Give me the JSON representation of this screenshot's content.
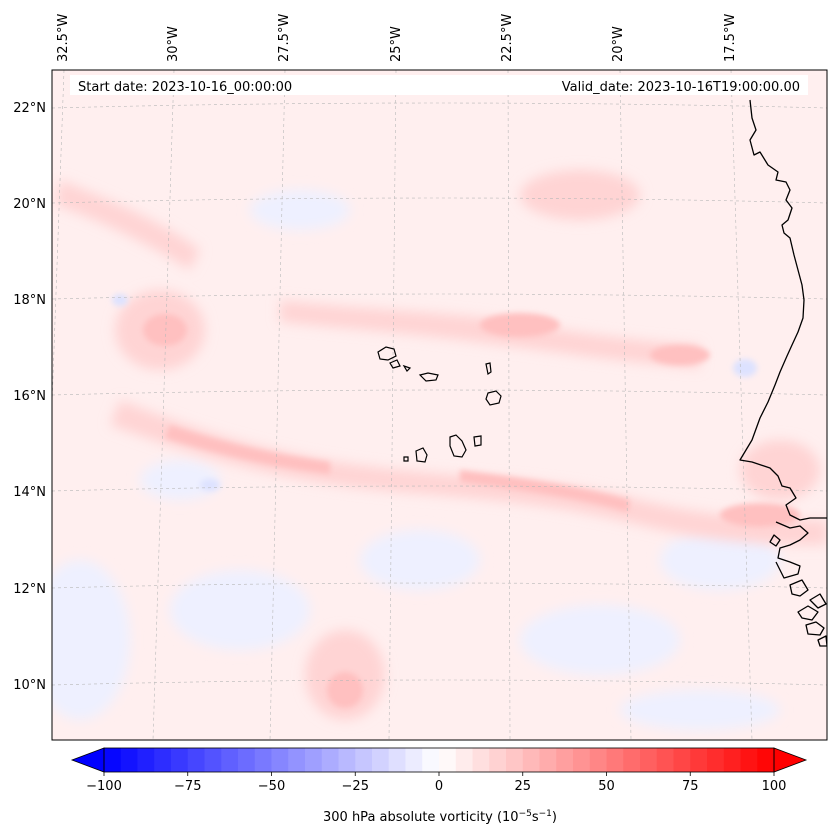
{
  "map": {
    "start_date": "Start date: 2023-10-16_00:00:00",
    "valid_date": "Valid_date: 2023-10-16T19:00:00.00",
    "lon_labels": [
      "32.5°W",
      "30°W",
      "27.5°W",
      "25°W",
      "22.5°W",
      "20°W",
      "17.5°W"
    ],
    "lat_labels": [
      "22°N",
      "20°N",
      "18°N",
      "16°N",
      "14°N",
      "12°N",
      "10°N"
    ],
    "field": "300 hPa absolute vorticity",
    "colors": {
      "coast": "#000000",
      "grid": "#b0b0b0",
      "positive": "#ff0000",
      "negative": "#0000ff"
    }
  },
  "colorbar": {
    "label": "300 hPa absolute vorticity (10",
    "unit_exp1": "−5",
    "unit_mid": "s",
    "unit_exp2": "−1",
    "unit_close": ")",
    "min": -100,
    "max": 100,
    "ticks": [
      -100,
      -75,
      -50,
      -25,
      0,
      25,
      50,
      75,
      100
    ],
    "tick_labels": [
      "−100",
      "−75",
      "−50",
      "−25",
      "0",
      "25",
      "50",
      "75",
      "100"
    ]
  }
}
